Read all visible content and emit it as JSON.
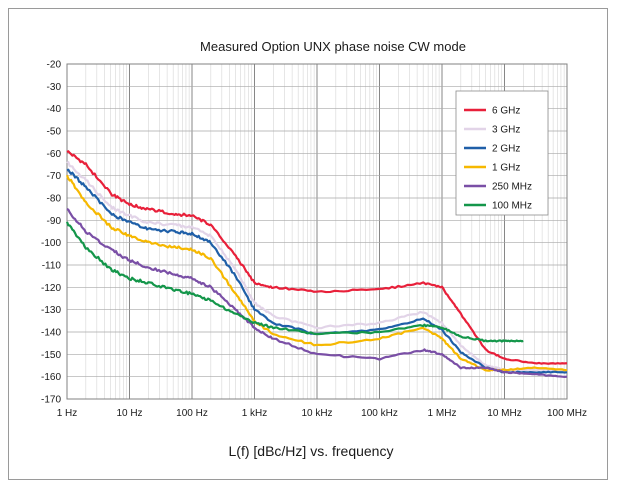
{
  "chart_data": {
    "type": "line",
    "title": "Measured Option UNX phase noise CW mode",
    "xlabel": "L(f) [dBc/Hz] vs. frequency",
    "ylabel": "",
    "x_scale": "log",
    "x_unit": "Hz",
    "xlim": [
      1,
      100000000
    ],
    "ylim": [
      -170,
      -20
    ],
    "x_ticks": [
      1,
      10,
      100,
      1000,
      10000,
      100000,
      1000000,
      10000000,
      100000000
    ],
    "x_tick_labels": [
      "1 Hz",
      "10 Hz",
      "100 Hz",
      "1 kHz",
      "10 kHz",
      "100 kHz",
      "1 MHz",
      "10 MHz",
      "100 MHz"
    ],
    "y_ticks": [
      -20,
      -30,
      -40,
      -50,
      -60,
      -70,
      -80,
      -90,
      -100,
      -110,
      -120,
      -130,
      -140,
      -150,
      -160,
      -170
    ],
    "grid": true,
    "legend_position": "top-right",
    "series": [
      {
        "name": "6 GHz",
        "color": "#e8203a",
        "x": [
          1,
          2,
          5,
          10,
          20,
          50,
          100,
          200,
          500,
          1000,
          2000,
          10000,
          100000,
          500000,
          1000000,
          2000000,
          5000000,
          10000000,
          30000000,
          100000000
        ],
        "y": [
          -59,
          -65,
          -78,
          -83,
          -85,
          -87,
          -88,
          -92,
          -106,
          -118,
          -120,
          -122,
          -121,
          -118,
          -120,
          -132,
          -148,
          -152,
          -154,
          -154
        ]
      },
      {
        "name": "3 GHz",
        "color": "#e2d4e8",
        "x": [
          1,
          2,
          5,
          10,
          20,
          50,
          100,
          200,
          500,
          1000,
          2000,
          10000,
          100000,
          500000,
          1000000,
          2000000,
          5000000,
          10000000,
          30000000,
          100000000
        ],
        "y": [
          -64,
          -72,
          -84,
          -88,
          -91,
          -92,
          -93,
          -97,
          -112,
          -127,
          -133,
          -138,
          -136,
          -131,
          -136,
          -146,
          -155,
          -157,
          -157,
          -157
        ]
      },
      {
        "name": "2 GHz",
        "color": "#1f5fa8",
        "x": [
          1,
          2,
          5,
          10,
          20,
          50,
          100,
          200,
          500,
          1000,
          2000,
          10000,
          100000,
          500000,
          1000000,
          2000000,
          5000000,
          10000000,
          30000000,
          100000000
        ],
        "y": [
          -67,
          -75,
          -87,
          -91,
          -94,
          -95,
          -96,
          -100,
          -115,
          -130,
          -136,
          -141,
          -139,
          -134,
          -139,
          -149,
          -156,
          -158,
          -158,
          -158
        ]
      },
      {
        "name": "1 GHz",
        "color": "#f6b800",
        "x": [
          1,
          2,
          5,
          10,
          20,
          50,
          100,
          200,
          500,
          1000,
          2000,
          10000,
          100000,
          500000,
          1000000,
          2000000,
          5000000,
          10000000,
          30000000,
          100000000
        ],
        "y": [
          -70,
          -82,
          -93,
          -97,
          -100,
          -102,
          -103,
          -107,
          -123,
          -135,
          -141,
          -146,
          -143,
          -138,
          -143,
          -152,
          -157,
          -157,
          -156,
          -157
        ]
      },
      {
        "name": "250 MHz",
        "color": "#7a4fa6",
        "x": [
          1,
          2,
          5,
          10,
          20,
          50,
          100,
          200,
          500,
          1000,
          2000,
          10000,
          100000,
          500000,
          1000000,
          2000000,
          5000000,
          10000000,
          30000000,
          100000000
        ],
        "y": [
          -85,
          -95,
          -103,
          -108,
          -111,
          -114,
          -116,
          -120,
          -130,
          -138,
          -143,
          -150,
          -152,
          -148,
          -150,
          -156,
          -156,
          -158,
          -159,
          -160
        ]
      },
      {
        "name": "100 MHz",
        "color": "#14964a",
        "x": [
          1,
          2,
          5,
          10,
          20,
          50,
          100,
          200,
          500,
          1000,
          2000,
          10000,
          100000,
          500000,
          1000000,
          2000000,
          5000000,
          10000000,
          20000000
        ],
        "y": [
          -91,
          -102,
          -112,
          -116,
          -118,
          -121,
          -123,
          -126,
          -132,
          -136,
          -138,
          -141,
          -140,
          -137,
          -138,
          -142,
          -144,
          -144,
          -144
        ]
      }
    ]
  }
}
